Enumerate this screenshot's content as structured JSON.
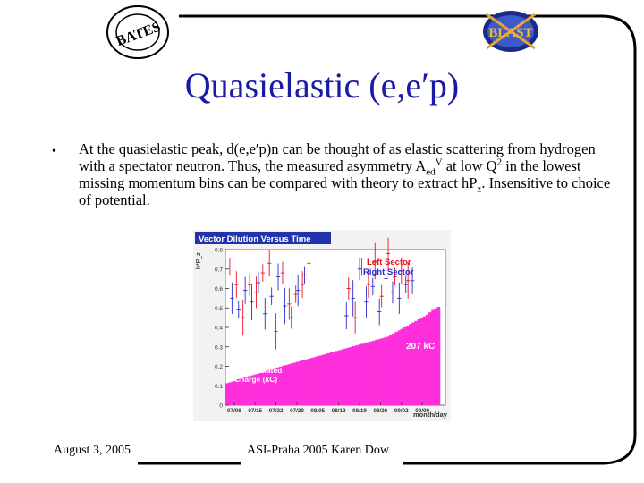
{
  "slide": {
    "title": "Quasielastic (e,e′p)",
    "bullet": {
      "marker": "•",
      "part1": "At the quasielastic peak, d(e,e′p)n can be thought of as elastic scattering from hydrogen with a spectator neutron.  Thus, the measured asymmetry A",
      "sub1": "ed",
      "sup1": "V",
      "part2": " at low Q",
      "sup2": "2",
      "part3": " in the lowest missing momentum bins can be compared with theory to extract hP",
      "sub2": "z",
      "part4": ".  Insensitive to choice of potential."
    },
    "footer": {
      "date": "August 3, 2005",
      "center": "ASI-Praha 2005   Karen Dow"
    },
    "logos": {
      "left_text": "BATES",
      "right_text": "BLAST"
    }
  },
  "chart_data": {
    "type": "scatter",
    "title": "Vector Dilution Versus Time",
    "ylabel": "h*P_z",
    "xlabel": "month/day",
    "ylim": [
      0,
      0.8
    ],
    "y_ticks": [
      "0",
      "0.1",
      "0.2",
      "0.3",
      "0.4",
      "0.5",
      "0.6",
      "0.7",
      "0.8"
    ],
    "x_ticks": [
      "07/08",
      "07/15",
      "07/22",
      "07/29",
      "08/05",
      "08/12",
      "08/19",
      "08/26",
      "09/02",
      "09/09"
    ],
    "legend": [
      {
        "name": "Left Sector",
        "color": "#e8141e"
      },
      {
        "name": "Right Sector",
        "color": "#2a2ad0"
      }
    ],
    "annotations": {
      "charge_total": "207 kC",
      "charge_label_1": "Accumulated",
      "charge_label_2": "Charge (kC)"
    },
    "colors": {
      "charge_fill": "#ff2fdc",
      "title_bar": "#2233aa",
      "background": "#f2f2f2"
    },
    "series": [
      {
        "name": "Left Sector",
        "x_frac": [
          0.02,
          0.05,
          0.08,
          0.11,
          0.14,
          0.17,
          0.2,
          0.23,
          0.26,
          0.29,
          0.32,
          0.35,
          0.38,
          0.56,
          0.59,
          0.62,
          0.65,
          0.68,
          0.71,
          0.74,
          0.77,
          0.8,
          0.83
        ],
        "values": [
          0.71,
          0.62,
          0.45,
          0.62,
          0.58,
          0.68,
          0.73,
          0.38,
          0.68,
          0.52,
          0.57,
          0.62,
          0.73,
          0.6,
          0.45,
          0.71,
          0.62,
          0.74,
          0.56,
          0.78,
          0.66,
          0.69,
          0.64
        ]
      },
      {
        "name": "Right Sector",
        "x_frac": [
          0.03,
          0.06,
          0.09,
          0.12,
          0.15,
          0.18,
          0.21,
          0.24,
          0.27,
          0.3,
          0.33,
          0.36,
          0.55,
          0.58,
          0.61,
          0.64,
          0.67,
          0.7,
          0.73,
          0.76,
          0.79,
          0.82,
          0.85
        ],
        "values": [
          0.55,
          0.49,
          0.59,
          0.53,
          0.63,
          0.47,
          0.56,
          0.66,
          0.51,
          0.45,
          0.59,
          0.67,
          0.46,
          0.55,
          0.7,
          0.53,
          0.61,
          0.48,
          0.65,
          0.58,
          0.55,
          0.62,
          0.64
        ]
      }
    ],
    "charge_bars_frac": [
      0.03,
      0.04,
      0.05,
      0.06,
      0.08,
      0.09,
      0.1,
      0.11,
      0.12,
      0.13,
      0.14,
      0.15,
      0.16,
      0.17,
      0.19,
      0.2,
      0.21,
      0.22,
      0.23,
      0.24,
      0.25,
      0.26,
      0.27,
      0.28,
      0.29,
      0.3,
      0.31,
      0.32,
      0.33,
      0.34,
      0.35,
      0.36,
      0.37,
      0.38,
      0.39,
      0.4,
      0.41,
      0.42,
      0.43,
      0.44,
      0.45,
      0.46,
      0.47,
      0.48,
      0.49,
      0.5,
      0.51,
      0.52,
      0.53,
      0.54,
      0.55,
      0.56,
      0.57,
      0.58,
      0.59,
      0.6,
      0.61,
      0.62,
      0.64,
      0.66,
      0.68,
      0.7,
      0.72,
      0.74,
      0.76,
      0.78,
      0.8,
      0.82,
      0.84,
      0.86,
      0.88,
      0.9,
      0.93,
      0.96,
      0.98,
      1.0
    ]
  }
}
